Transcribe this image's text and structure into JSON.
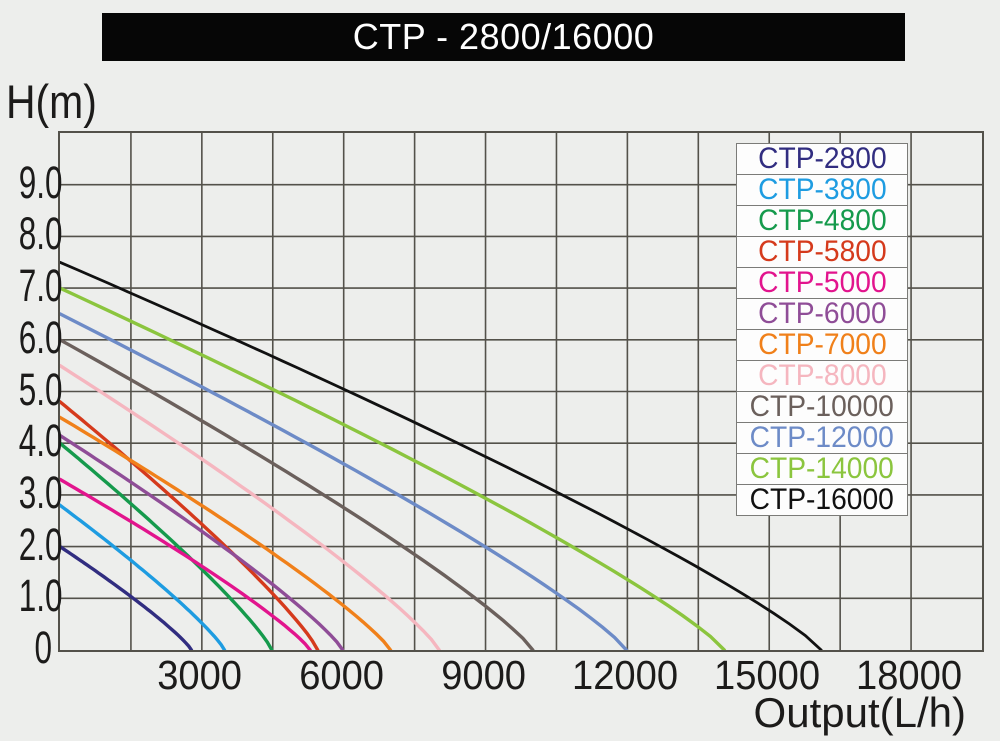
{
  "colors": {
    "background": "#edeeec",
    "grid": "#53514a",
    "title_bg": "#060606",
    "title_fg": "#ffffff",
    "tick_text": "#1c1b1a",
    "legend_bg": "#fdfdfd",
    "legend_border": "#7b7b78"
  },
  "chart_data": {
    "type": "line",
    "title": "CTP - 2800/16000",
    "xlabel": "Output(L/h)",
    "ylabel": "H(m)",
    "xlim": [
      0,
      19500
    ],
    "ylim": [
      0,
      10
    ],
    "x_grid_step": 1500,
    "y_grid_step": 1,
    "grid": true,
    "legend_position": "upper right",
    "x_tick_values": [
      3000,
      6000,
      9000,
      12000,
      15000,
      18000
    ],
    "x_tick_labels": [
      "3000",
      "6000",
      "9000",
      "12000",
      "15000",
      "18000"
    ],
    "y_tick_values": [
      9,
      8,
      7,
      6,
      5,
      4,
      3,
      2,
      1,
      0
    ],
    "y_tick_labels": [
      "9.0",
      "8.0",
      "7.0",
      "6.0",
      "5.0",
      "4.0",
      "3.0",
      "2.0",
      "1.0",
      "0"
    ],
    "curve_exponent": 0.85,
    "series": [
      {
        "name": "CTP-2800",
        "color": "#312d80",
        "max_head_m": 2.0,
        "max_flow_lh": 2780
      },
      {
        "name": "CTP-3800",
        "color": "#1e9ce1",
        "max_head_m": 2.8,
        "max_flow_lh": 3480
      },
      {
        "name": "CTP-4800",
        "color": "#159a4c",
        "max_head_m": 4.0,
        "max_flow_lh": 4480
      },
      {
        "name": "CTP-5800",
        "color": "#d53a1c",
        "max_head_m": 4.8,
        "max_flow_lh": 5450
      },
      {
        "name": "CTP-5000",
        "color": "#e2148d",
        "max_head_m": 3.3,
        "max_flow_lh": 5290
      },
      {
        "name": "CTP-6000",
        "color": "#8f4d97",
        "max_head_m": 4.15,
        "max_flow_lh": 5980
      },
      {
        "name": "CTP-7000",
        "color": "#f0801a",
        "max_head_m": 4.5,
        "max_flow_lh": 6990
      },
      {
        "name": "CTP-8000",
        "color": "#f5b6bf",
        "max_head_m": 5.5,
        "max_flow_lh": 8020
      },
      {
        "name": "CTP-10000",
        "color": "#6b605c",
        "max_head_m": 6.0,
        "max_flow_lh": 10000
      },
      {
        "name": "CTP-12000",
        "color": "#6d8bc7",
        "max_head_m": 6.5,
        "max_flow_lh": 11980
      },
      {
        "name": "CTP-14000",
        "color": "#8bc53e",
        "max_head_m": 7.0,
        "max_flow_lh": 14050
      },
      {
        "name": "CTP-16000",
        "color": "#111111",
        "max_head_m": 7.5,
        "max_flow_lh": 16100
      }
    ]
  }
}
